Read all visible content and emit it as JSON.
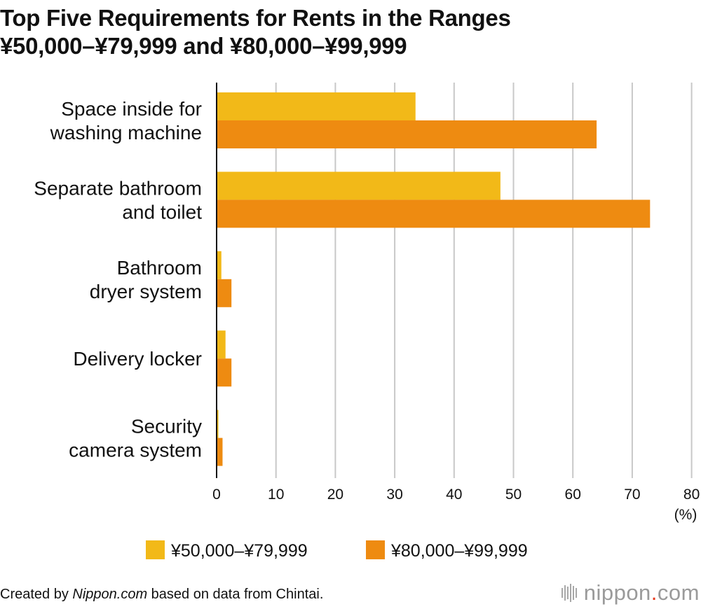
{
  "title_line1": "Top Five Requirements for Rents in the Ranges",
  "title_line2": "¥50,000–¥79,999 and ¥80,000–¥99,999",
  "footer": {
    "prefix": "Created by ",
    "source_site": "Nippon.com",
    "suffix": " based on data from Chintai."
  },
  "logo": {
    "name": "nippon",
    "dot": ".",
    "tld": "com"
  },
  "chart_data": {
    "type": "bar",
    "orientation": "horizontal",
    "categories": [
      [
        "Space inside for",
        "washing machine"
      ],
      [
        "Separate bathroom",
        "and toilet"
      ],
      [
        "Bathroom",
        "dryer system"
      ],
      [
        "Delivery locker"
      ],
      [
        "Security",
        "camera system"
      ]
    ],
    "series": [
      {
        "name": "¥50,000–¥79,999",
        "color": "#f2b918",
        "values": [
          33.5,
          47.8,
          0.8,
          1.5,
          0.3
        ]
      },
      {
        "name": "¥80,000–¥99,999",
        "color": "#ee8b11",
        "values": [
          64.0,
          73.0,
          2.5,
          2.5,
          1.0
        ]
      }
    ],
    "xlim": [
      0,
      80
    ],
    "xticks": [
      0,
      10,
      20,
      30,
      40,
      50,
      60,
      70,
      80
    ],
    "xunit": "(%)",
    "grid": true,
    "legend": "bottom"
  }
}
